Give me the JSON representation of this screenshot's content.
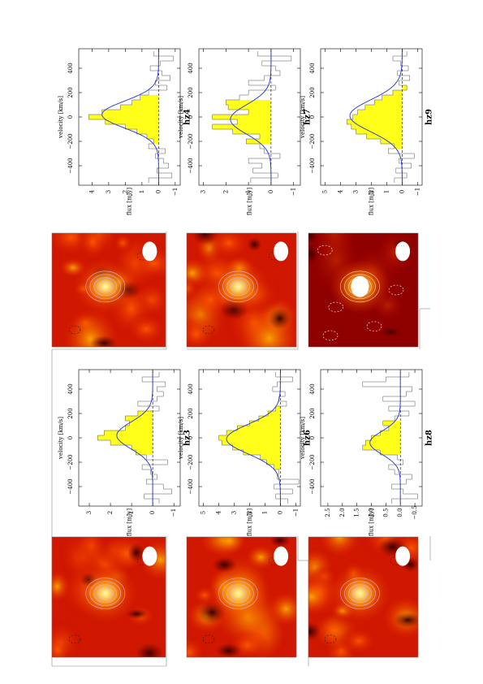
{
  "figure": {
    "flux_axis_label": "flux [mJy]",
    "velocity_axis_label": "velocity [km/s]",
    "velocity_ticks": [
      "−400",
      "−200",
      "0",
      "200",
      "400"
    ],
    "colors": {
      "histogram_fill": "#ffff1a",
      "gaussian_line": "#2233cc",
      "map_hot": "#ffffff",
      "map_mid": "#ff9900",
      "map_low": "#8a0000",
      "contour_pos": "#d9b3e6",
      "beam": "#ffffff",
      "frame": "#999999"
    }
  },
  "chart_data": [
    {
      "type": "bar",
      "name": "hz3",
      "x": [
        -520,
        -480,
        -440,
        -400,
        -360,
        -320,
        -280,
        -240,
        -200,
        -160,
        -120,
        -80,
        -40,
        0,
        40,
        80,
        120,
        160,
        200,
        240,
        280,
        320,
        360,
        400,
        440,
        480,
        520
      ],
      "values": [
        -0.3,
        0.4,
        -0.9,
        -0.5,
        0.3,
        -0.2,
        0.1,
        0.5,
        -0.7,
        0.3,
        0.8,
        1.0,
        2.0,
        2.6,
        2.3,
        1.3,
        1.1,
        1.3,
        0.7,
        -0.3,
        0.7,
        -0.2,
        -0.5,
        -0.2,
        -0.6,
        0.5,
        -0.3
      ],
      "gaussian": {
        "amplitude": 1.7,
        "center": 20,
        "sigma": 110
      },
      "line_window": [
        -120,
        200
      ],
      "xlim": [
        -560,
        560
      ],
      "ylim": [
        -1.3,
        3.5
      ],
      "yticks": [
        "−1",
        "0",
        "1",
        "2",
        "3"
      ]
    },
    {
      "type": "bar",
      "name": "hz4",
      "x": [
        -520,
        -480,
        -440,
        -400,
        -360,
        -320,
        -280,
        -240,
        -200,
        -160,
        -120,
        -80,
        -40,
        0,
        40,
        80,
        120,
        160,
        200,
        240,
        280,
        320,
        360,
        400,
        440,
        480,
        520
      ],
      "values": [
        0.6,
        -0.8,
        0.1,
        -0.6,
        -0.3,
        0.2,
        -0.4,
        0.6,
        0.3,
        0.7,
        1.3,
        2.0,
        3.2,
        4.2,
        3.4,
        2.3,
        1.6,
        1.1,
        0.6,
        -0.5,
        0.2,
        -0.7,
        -0.2,
        0.5,
        -0.1,
        -0.9,
        0.3
      ],
      "gaussian": {
        "amplitude": 3.4,
        "center": 20,
        "sigma": 110
      },
      "line_window": [
        -200,
        180
      ],
      "xlim": [
        -560,
        560
      ],
      "ylim": [
        -1.3,
        4.8
      ],
      "yticks": [
        "−1",
        "0",
        "1",
        "2",
        "3",
        "4"
      ]
    },
    {
      "type": "bar",
      "name": "hz6",
      "x": [
        -520,
        -480,
        -440,
        -400,
        -360,
        -320,
        -280,
        -240,
        -200,
        -160,
        -120,
        -80,
        -40,
        0,
        40,
        80,
        120,
        160,
        200,
        240,
        280,
        320,
        360,
        400,
        440,
        480,
        520
      ],
      "values": [
        -0.5,
        0.3,
        -0.8,
        0.4,
        -1.2,
        0.2,
        0.1,
        0.4,
        0.9,
        1.3,
        2.4,
        3.1,
        3.8,
        4.0,
        3.5,
        2.8,
        2.0,
        1.4,
        0.8,
        0.3,
        -0.4,
        0.1,
        -0.3,
        0.5,
        0.2,
        -0.8,
        0.3
      ],
      "gaussian": {
        "amplitude": 3.5,
        "center": -10,
        "sigma": 120
      },
      "line_window": [
        -250,
        250
      ],
      "xlim": [
        -560,
        560
      ],
      "ylim": [
        -1.3,
        5.3
      ],
      "yticks": [
        "−1",
        "0",
        "1",
        "2",
        "3",
        "4",
        "5"
      ]
    },
    {
      "type": "bar",
      "name": "hz7",
      "x": [
        -520,
        -480,
        -440,
        -400,
        -360,
        -320,
        -280,
        -240,
        -200,
        -160,
        -120,
        -80,
        -40,
        0,
        40,
        80,
        120,
        160,
        200,
        240,
        280,
        320,
        360,
        400,
        440,
        480,
        520
      ],
      "values": [
        0.9,
        -0.3,
        0.8,
        0.4,
        1.0,
        -0.4,
        0.3,
        0.5,
        1.1,
        0.5,
        1.7,
        2.6,
        1.5,
        2.6,
        1.0,
        1.9,
        2.0,
        1.4,
        1.0,
        -0.2,
        1.0,
        0.3,
        -0.4,
        -0.2,
        0.4,
        -0.9,
        0.6
      ],
      "gaussian": {
        "amplitude": 1.8,
        "center": -20,
        "sigma": 120
      },
      "line_window": [
        -220,
        150
      ],
      "xlim": [
        -560,
        560
      ],
      "ylim": [
        -1.3,
        3.2
      ],
      "yticks": [
        "−1",
        "0",
        "1",
        "2",
        "3"
      ]
    },
    {
      "type": "bar",
      "name": "hz8",
      "x": [
        -520,
        -480,
        -440,
        -400,
        -360,
        -320,
        -280,
        -240,
        -200,
        -160,
        -120,
        -80,
        -40,
        0,
        40,
        80,
        120,
        160,
        200,
        240,
        280,
        320,
        360,
        400,
        440,
        480,
        520
      ],
      "values": [
        0.3,
        -0.6,
        -0.1,
        0.3,
        -0.2,
        -0.4,
        0.2,
        0.4,
        -0.1,
        0.1,
        0.7,
        1.3,
        1.2,
        1.0,
        0.7,
        0.4,
        0.6,
        0.2,
        -0.3,
        0.4,
        -0.5,
        0.6,
        -0.2,
        -0.4,
        1.3,
        0.5,
        -0.3
      ],
      "gaussian": {
        "amplitude": 1.05,
        "center": -40,
        "sigma": 95
      },
      "line_window": [
        -150,
        130
      ],
      "xlim": [
        -560,
        560
      ],
      "ylim": [
        -0.75,
        2.75
      ],
      "yticks": [
        "−0.5",
        "0.0",
        "0.5",
        "1.0",
        "1.5",
        "2.0",
        "2.5"
      ]
    },
    {
      "type": "bar",
      "name": "hz9",
      "x": [
        -520,
        -480,
        -440,
        -400,
        -360,
        -320,
        -280,
        -240,
        -200,
        -160,
        -120,
        -80,
        -40,
        0,
        40,
        80,
        120,
        160,
        200,
        240,
        280,
        320,
        360,
        400,
        440,
        480,
        520
      ],
      "values": [
        0.5,
        -0.3,
        0.4,
        -0.6,
        0.2,
        -0.8,
        0.9,
        0.5,
        1.4,
        2.3,
        3.0,
        3.3,
        3.6,
        3.2,
        2.9,
        2.4,
        1.8,
        1.3,
        0.6,
        -0.3,
        0.2,
        -0.5,
        0.3,
        -0.4,
        0.1,
        0.6,
        -0.3
      ],
      "gaussian": {
        "amplitude": 3.4,
        "center": 10,
        "sigma": 130
      },
      "line_window": [
        -260,
        240
      ],
      "xlim": [
        -560,
        560
      ],
      "ylim": [
        -1.3,
        5.3
      ],
      "yticks": [
        "−1",
        "0",
        "1",
        "2",
        "3",
        "4",
        "5"
      ]
    }
  ]
}
